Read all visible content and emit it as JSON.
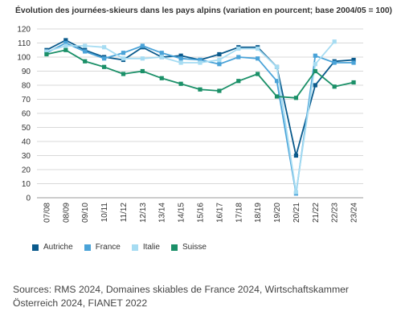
{
  "title": "Évolution des journées-skieurs dans les pays alpins (variation en pourcent; base 2004/05 = 100)",
  "sources": "Sources: RMS 2024, Domaines skiables de France 2024, Wirtschaftskammer Österreich 2024, FIANET 2022",
  "chart_data": {
    "type": "line",
    "title": "Évolution des journées-skieurs dans les pays alpins (variation en pourcent; base 2004/05 = 100)",
    "xlabel": "",
    "ylabel": "",
    "ylim": [
      0,
      120
    ],
    "yticks": [
      0,
      10,
      20,
      30,
      40,
      50,
      60,
      70,
      80,
      90,
      100,
      110,
      120
    ],
    "grid": true,
    "legend_position": "bottom-left",
    "categories": [
      "07/08",
      "08/09",
      "09/10",
      "10/11",
      "11/12",
      "12/13",
      "13/14",
      "14/15",
      "15/16",
      "16/17",
      "17/18",
      "18/19",
      "19/20",
      "20/21",
      "21/22",
      "22/23",
      "23/24"
    ],
    "series": [
      {
        "name": "Autriche",
        "color": "#0a5a8c",
        "values": [
          105,
          112,
          105,
          100,
          98,
          107,
          100,
          101,
          98,
          102,
          107,
          107,
          93,
          30,
          80,
          97,
          98
        ]
      },
      {
        "name": "France",
        "color": "#4aa3d8",
        "values": [
          103,
          110,
          104,
          99,
          103,
          108,
          103,
          99,
          98,
          95,
          100,
          99,
          83,
          3,
          101,
          96,
          96
        ]
      },
      {
        "name": "Italie",
        "color": "#a6dcf2",
        "values": [
          104,
          108,
          108,
          107,
          99,
          99,
          100,
          96,
          96,
          98,
          106,
          106,
          93,
          4,
          95,
          111,
          null
        ]
      },
      {
        "name": "Suisse",
        "color": "#1b9068",
        "values": [
          102,
          105,
          97,
          93,
          88,
          90,
          85,
          81,
          77,
          76,
          83,
          88,
          72,
          71,
          90,
          79,
          82
        ]
      }
    ]
  }
}
